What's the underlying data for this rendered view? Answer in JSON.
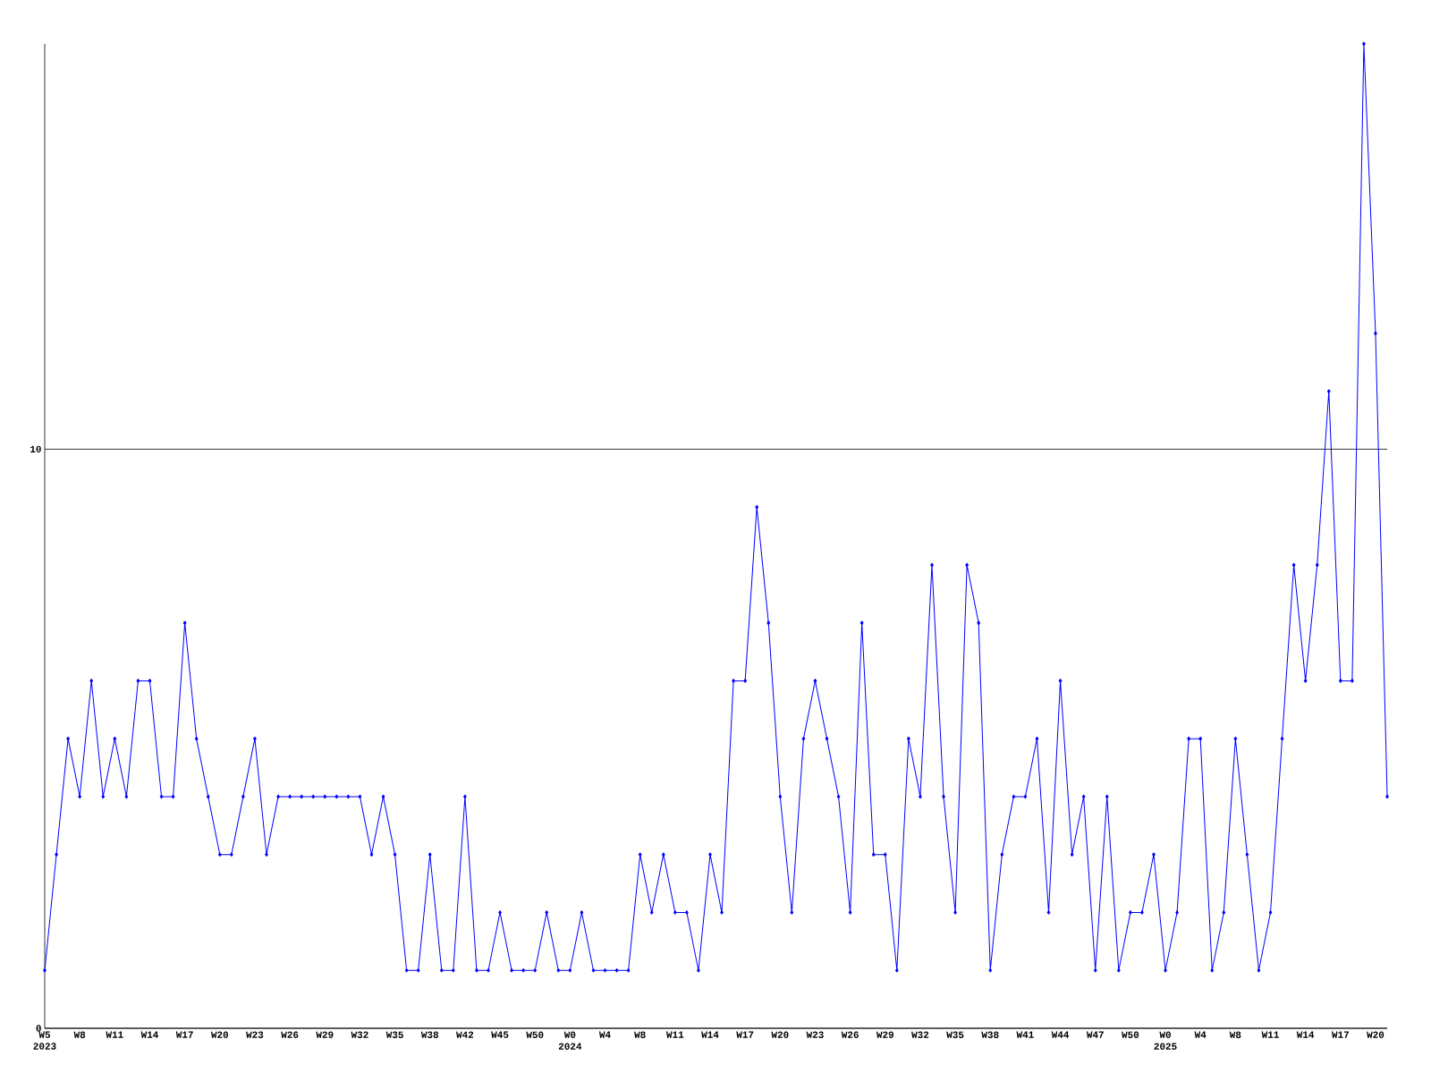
{
  "chart_data": {
    "type": "line",
    "categories": [
      "W5 2023",
      null,
      null,
      "W8",
      null,
      null,
      "W11",
      null,
      null,
      "W14",
      null,
      null,
      "W17",
      null,
      null,
      "W20",
      null,
      null,
      "W23",
      null,
      null,
      "W26",
      null,
      null,
      "W29",
      null,
      null,
      "W32",
      null,
      null,
      "W35",
      null,
      null,
      "W38",
      null,
      null,
      "W42",
      null,
      null,
      "W45",
      null,
      null,
      "W50",
      null,
      null,
      "W0 2024",
      null,
      null,
      "W4",
      null,
      null,
      "W8",
      null,
      null,
      "W11",
      null,
      null,
      "W14",
      null,
      null,
      "W17",
      null,
      null,
      "W20",
      null,
      null,
      "W23",
      null,
      null,
      "W26",
      null,
      null,
      "W29",
      null,
      null,
      "W32",
      null,
      null,
      "W35",
      null,
      null,
      "W38",
      null,
      null,
      "W41",
      null,
      null,
      "W44",
      null,
      null,
      "W47",
      null,
      null,
      "W50",
      null,
      null,
      "W0 2025",
      null,
      null,
      "W4",
      null,
      null,
      "W8",
      null,
      null,
      "W11",
      null,
      null,
      "W14",
      null,
      null,
      "W17",
      null,
      null,
      "W20",
      null
    ],
    "values": [
      1,
      3,
      5,
      4,
      6,
      4,
      5,
      4,
      6,
      6,
      4,
      4,
      7,
      5,
      4,
      3,
      3,
      4,
      5,
      3,
      4,
      4,
      4,
      4,
      4,
      4,
      4,
      4,
      3,
      4,
      3,
      1,
      1,
      3,
      1,
      1,
      4,
      1,
      1,
      2,
      1,
      1,
      1,
      2,
      1,
      1,
      2,
      1,
      1,
      1,
      1,
      3,
      2,
      3,
      2,
      2,
      1,
      3,
      2,
      6,
      6,
      9,
      7,
      4,
      2,
      5,
      6,
      5,
      4,
      2,
      7,
      3,
      3,
      1,
      5,
      4,
      8,
      4,
      2,
      8,
      7,
      1,
      3,
      4,
      4,
      5,
      2,
      6,
      3,
      4,
      1,
      4,
      1,
      2,
      2,
      3,
      1,
      2,
      5,
      5,
      1,
      2,
      5,
      3,
      1,
      2,
      5,
      8,
      6,
      8,
      11,
      6,
      6,
      17,
      12,
      4
    ],
    "color": "#0000ff",
    "ylim": [
      0,
      17
    ],
    "yticks": [
      0,
      10
    ],
    "grid": "y",
    "marker": "diamond"
  }
}
